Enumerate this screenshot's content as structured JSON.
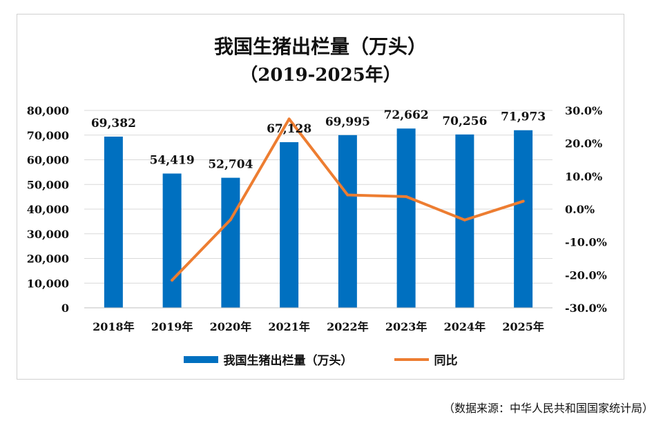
{
  "chart_data": {
    "type": "bar",
    "title": "我国生猪出栏量（万头）",
    "subtitle": "（2019-2025年）",
    "categories": [
      "2018年",
      "2019年",
      "2020年",
      "2021年",
      "2022年",
      "2023年",
      "2024年",
      "2025年"
    ],
    "series": [
      {
        "name": "我国生猪出栏量（万头）",
        "axis": "left",
        "values": [
          69382,
          54419,
          52704,
          67128,
          69995,
          72662,
          70256,
          71973
        ],
        "labels": [
          "69,382",
          "54,419",
          "52,704",
          "67,128",
          "69,995",
          "72,662",
          "70,256",
          "71,973"
        ],
        "color": "#0070C0"
      },
      {
        "name": "同比",
        "axis": "right",
        "type": "line",
        "values": [
          null,
          -21.6,
          -3.2,
          27.4,
          4.3,
          3.8,
          -3.3,
          2.4
        ],
        "color": "#ED7D31"
      }
    ],
    "ylim": [
      0,
      80000
    ],
    "y_ticks": [
      "0",
      "10,000",
      "20,000",
      "30,000",
      "40,000",
      "50,000",
      "60,000",
      "70,000",
      "80,000"
    ],
    "y2lim": [
      -30,
      30
    ],
    "y2_ticks": [
      "-30.0%",
      "-20.0%",
      "-10.0%",
      "0.0%",
      "10.0%",
      "20.0%",
      "30.0%"
    ],
    "grid": true,
    "legend": "bottom"
  },
  "source": "（数据来源：中华人民共和国国家统计局）"
}
